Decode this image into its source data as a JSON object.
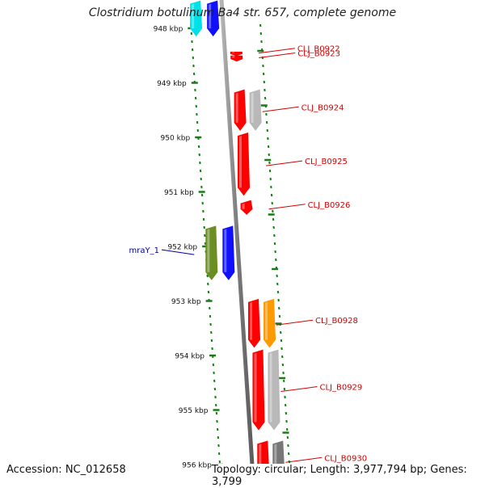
{
  "title": "Clostridium botulinum Ba4 str. 657, complete genome",
  "accession_text": "Accession: NC_012658",
  "summary_text": "Topology: circular; Length: 3,977,794 bp; Genes: 3,799",
  "colors": {
    "background": "#ffffff",
    "backbone": "#808080",
    "ticks": "#1a7a1a",
    "tick_label": "#111111",
    "label_red": "#d40000",
    "label_blue": "#000099"
  },
  "scale": {
    "unit": "kbp",
    "ticks": [
      {
        "value": 948,
        "label": "948 kbp"
      },
      {
        "value": 949,
        "label": "949 kbp"
      },
      {
        "value": 950,
        "label": "950 kbp"
      },
      {
        "value": 951,
        "label": "951 kbp"
      },
      {
        "value": 952,
        "label": "952 kbp"
      },
      {
        "value": 953,
        "label": "953 kbp"
      },
      {
        "value": 954,
        "label": "954 kbp"
      },
      {
        "value": 955,
        "label": "955 kbp"
      },
      {
        "value": 956,
        "label": "956 kbp"
      }
    ]
  },
  "genes": [
    {
      "label": "",
      "start": 947.55,
      "end": 948.15,
      "strand": "+",
      "lane": "left-outer",
      "color": "#00e0e8",
      "label_color": ""
    },
    {
      "label": "",
      "start": 947.55,
      "end": 948.15,
      "strand": "+",
      "lane": "left-inner",
      "color": "#1010ff",
      "label_color": ""
    },
    {
      "label": "CLJ_B0922",
      "start": 948.43,
      "end": 948.48,
      "strand": "+",
      "lane": "right-inner",
      "color": "#ff0000",
      "label_color": "#d40000"
    },
    {
      "label": "CLJ_B0923",
      "start": 948.5,
      "end": 948.58,
      "strand": "+",
      "lane": "right-inner",
      "color": "#ff0000",
      "label_color": "#d40000"
    },
    {
      "label": "CLJ_B0924",
      "start": 949.18,
      "end": 949.88,
      "strand": "+",
      "lane": "right-inner",
      "color": "#ff0000",
      "label_color": "#d40000"
    },
    {
      "label": "",
      "start": 949.18,
      "end": 949.88,
      "strand": "+",
      "lane": "right-outer",
      "color": "#b8b8b8",
      "label_color": ""
    },
    {
      "label": "CLJ_B0925",
      "start": 949.97,
      "end": 951.07,
      "strand": "+",
      "lane": "right-inner",
      "color": "#ff0000",
      "label_color": "#d40000"
    },
    {
      "label": "CLJ_B0926",
      "start": 951.21,
      "end": 951.42,
      "strand": "+",
      "lane": "right-inner",
      "color": "#ff0000",
      "label_color": "#d40000"
    },
    {
      "label": "mraY_1",
      "start": 951.68,
      "end": 952.62,
      "strand": "+",
      "lane": "left-outer",
      "color": "#6b8e23",
      "label_color": "#000099"
    },
    {
      "label": "",
      "start": 951.68,
      "end": 952.62,
      "strand": "+",
      "lane": "left-inner",
      "color": "#1010ff",
      "label_color": ""
    },
    {
      "label": "CLJ_B0928",
      "start": 953.02,
      "end": 953.86,
      "strand": "+",
      "lane": "right-inner",
      "color": "#ff0000",
      "label_color": "#d40000"
    },
    {
      "label": "",
      "start": 953.02,
      "end": 953.86,
      "strand": "+",
      "lane": "right-outer",
      "color": "#ff9900",
      "label_color": ""
    },
    {
      "label": "CLJ_B0929",
      "start": 953.95,
      "end": 955.37,
      "strand": "+",
      "lane": "right-inner",
      "color": "#ff0000",
      "label_color": "#d40000"
    },
    {
      "label": "",
      "start": 953.95,
      "end": 955.37,
      "strand": "+",
      "lane": "right-outer",
      "color": "#b8b8b8",
      "label_color": ""
    },
    {
      "label": "CLJ_B0930",
      "start": 955.62,
      "end": 956.3,
      "strand": "+",
      "lane": "right-inner",
      "color": "#ff0000",
      "label_color": "#d40000"
    },
    {
      "label": "",
      "start": 955.62,
      "end": 956.3,
      "strand": "+",
      "lane": "right-outer",
      "color": "#777777",
      "label_color": ""
    }
  ]
}
